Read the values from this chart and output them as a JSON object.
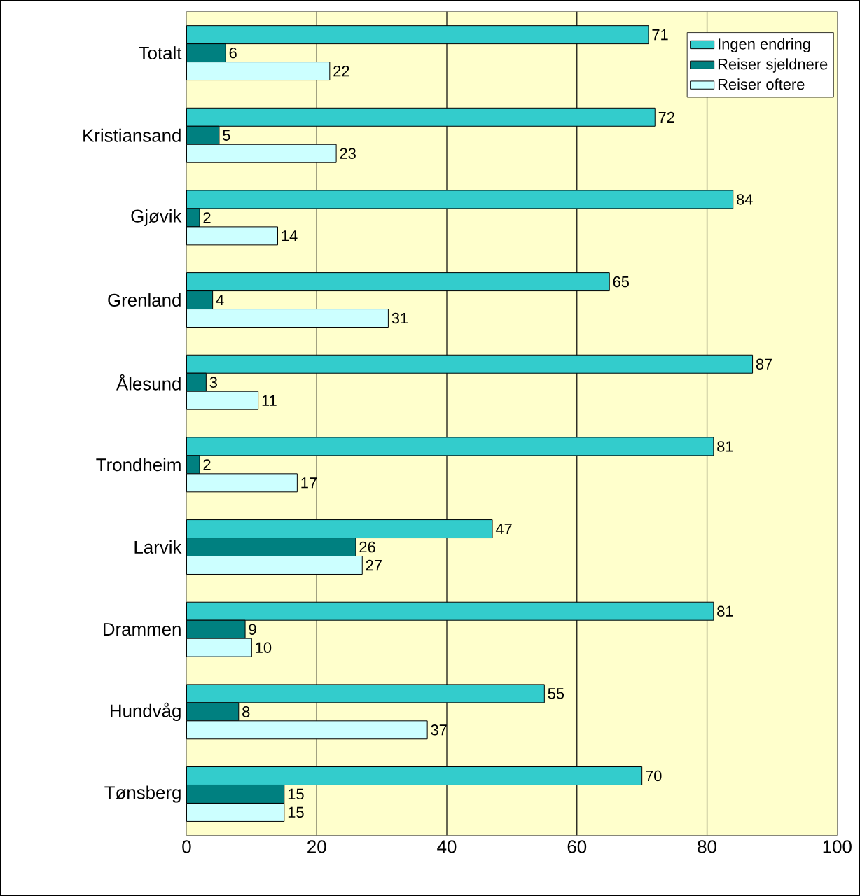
{
  "chart_data": {
    "type": "bar",
    "orientation": "horizontal",
    "categories": [
      "Totalt",
      "Kristiansand",
      "Gjøvik",
      "Grenland",
      "Ålesund",
      "Trondheim",
      "Larvik",
      "Drammen",
      "Hundvåg",
      "Tønsberg"
    ],
    "series": [
      {
        "name": "Ingen endring",
        "color": "#33cccc",
        "values": [
          71,
          72,
          84,
          65,
          87,
          81,
          47,
          81,
          55,
          70
        ]
      },
      {
        "name": "Reiser sjeldnere",
        "color": "#008080",
        "values": [
          6,
          5,
          2,
          4,
          3,
          2,
          26,
          9,
          8,
          15
        ]
      },
      {
        "name": "Reiser oftere",
        "color": "#ccffff",
        "values": [
          22,
          23,
          14,
          31,
          11,
          17,
          27,
          10,
          37,
          15
        ]
      }
    ],
    "xlim": [
      0,
      100
    ],
    "xticks": [
      0,
      20,
      40,
      60,
      80,
      100
    ],
    "grid": "x",
    "legend": "top right",
    "data_labels": true
  }
}
